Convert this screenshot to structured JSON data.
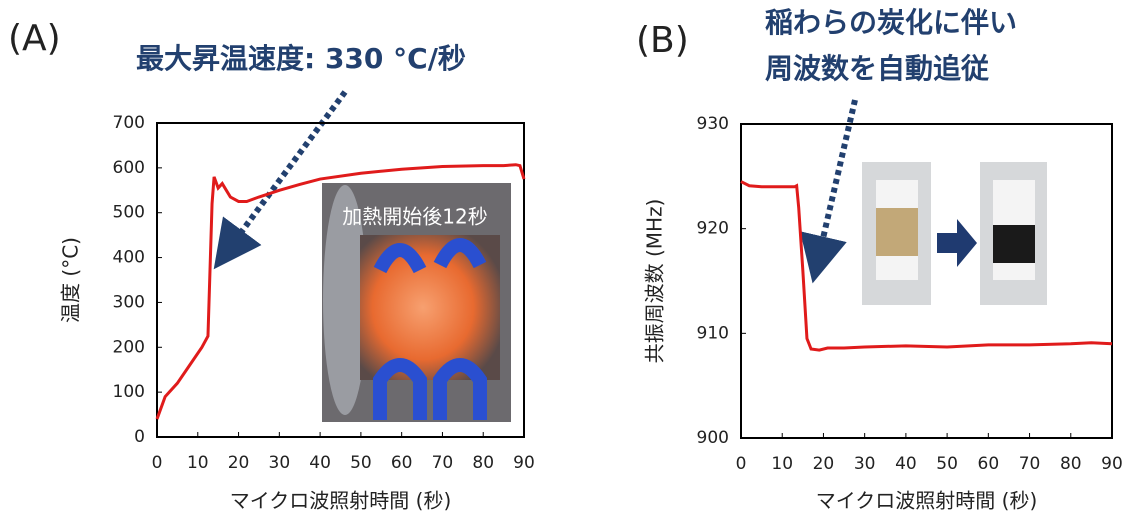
{
  "chart_data": [
    {
      "type": "line",
      "panel_label": "(A)",
      "annotation": [
        "最大昇温速度: 330 °C/秒"
      ],
      "inset_label": "加熱開始後12秒",
      "x": [
        0,
        2,
        5,
        8,
        11,
        12.5,
        13.5,
        14,
        15,
        16,
        17,
        18,
        20,
        22,
        25,
        30,
        35,
        40,
        50,
        60,
        70,
        80,
        85,
        88,
        89,
        90
      ],
      "values": [
        40,
        90,
        120,
        160,
        200,
        225,
        520,
        580,
        555,
        565,
        550,
        535,
        525,
        525,
        535,
        550,
        563,
        575,
        588,
        597,
        603,
        605,
        605,
        607,
        605,
        575
      ],
      "color": "#e01b1b",
      "xlabel": "マイクロ波照射時間 (秒)",
      "ylabel": "温度 (°C)",
      "xlim": [
        0,
        90
      ],
      "ylim": [
        0,
        700
      ],
      "xticks": [
        0,
        10,
        20,
        30,
        40,
        50,
        60,
        70,
        80,
        90
      ],
      "yticks": [
        0,
        100,
        200,
        300,
        400,
        500,
        600,
        700
      ],
      "grid": false
    },
    {
      "type": "line",
      "panel_label": "(B)",
      "annotation": [
        "稲わらの炭化に伴い",
        "周波数を自動追従"
      ],
      "x": [
        0,
        2,
        5,
        10,
        13,
        13.5,
        14,
        15,
        16,
        17,
        19,
        21,
        25,
        30,
        40,
        50,
        60,
        70,
        80,
        85,
        90
      ],
      "values": [
        924.5,
        924.1,
        924,
        924,
        924,
        924.1,
        922,
        916,
        909.5,
        908.5,
        908.4,
        908.6,
        908.6,
        908.7,
        908.8,
        908.7,
        908.9,
        908.9,
        909,
        909.1,
        909
      ],
      "color": "#e01b1b",
      "xlabel": "マイクロ波照射時間 (秒)",
      "ylabel": "共振周波数 (MHz)",
      "xlim": [
        0,
        90
      ],
      "ylim": [
        900,
        930
      ],
      "xticks": [
        0,
        10,
        20,
        30,
        40,
        50,
        60,
        70,
        80,
        90
      ],
      "yticks": [
        900,
        910,
        920,
        930
      ],
      "grid": false
    }
  ]
}
